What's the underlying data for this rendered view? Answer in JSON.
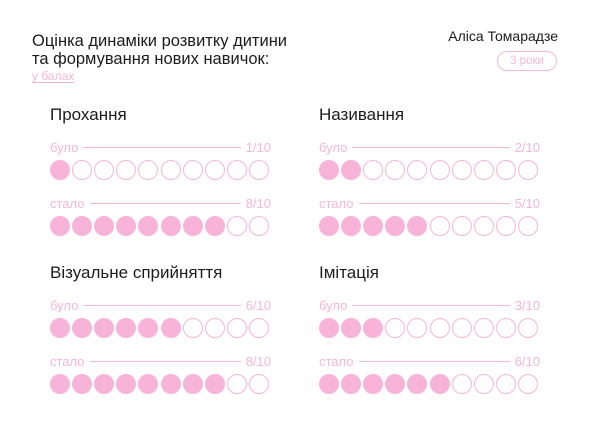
{
  "header": {
    "title_line1": "Оцінка динаміки розвитку дитини",
    "title_line2": "та формування нових навичок:",
    "units": "у балах",
    "author": "Аліса Томарадзе",
    "age": "3 роки"
  },
  "colors": {
    "accent": "#f4b6d8",
    "filled": "#f7b4d8",
    "text": "#1c1c1c"
  },
  "chart_data": {
    "type": "dot-matrix",
    "max": 10,
    "skills": [
      {
        "name": "Прохання",
        "before": {
          "label": "було",
          "score_text": "1/10",
          "value": 1
        },
        "after": {
          "label": "стало",
          "score_text": "8/10",
          "value": 8
        }
      },
      {
        "name": "Називання",
        "before": {
          "label": "було",
          "score_text": "2/10",
          "value": 2
        },
        "after": {
          "label": "стало",
          "score_text": "5/10",
          "value": 5
        }
      },
      {
        "name": "Візуальне сприйняття",
        "before": {
          "label": "було",
          "score_text": "6/10",
          "value": 6
        },
        "after": {
          "label": "стало",
          "score_text": "8/10",
          "value": 8
        }
      },
      {
        "name": "Імітація",
        "before": {
          "label": "було",
          "score_text": "3/10",
          "value": 3
        },
        "after": {
          "label": "стало",
          "score_text": "6/10",
          "value": 6
        }
      }
    ]
  }
}
